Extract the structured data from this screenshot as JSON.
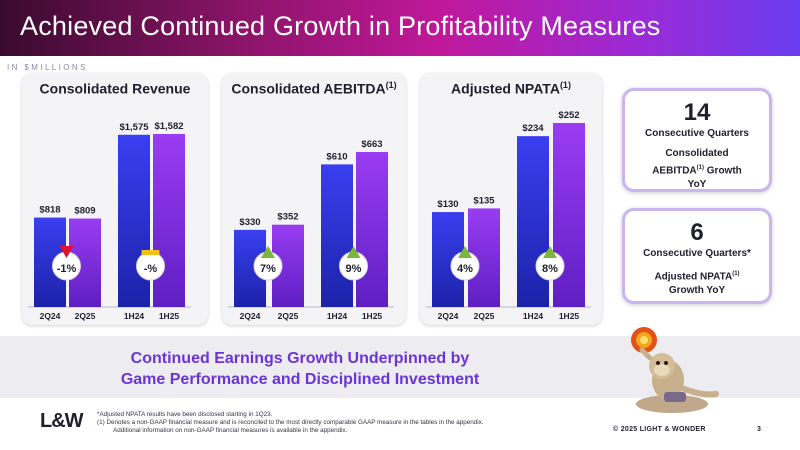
{
  "header": {
    "title": "Achieved Continued Growth in Profitability Measures"
  },
  "units_label": "IN $MILLIONS",
  "chart_data": [
    {
      "type": "bar",
      "title": "Consolidated Revenue",
      "title_sup": "",
      "groups": [
        {
          "bars": [
            {
              "label": "2Q24",
              "value": 818,
              "value_label": "$818"
            },
            {
              "label": "2Q25",
              "value": 809,
              "value_label": "$809"
            }
          ],
          "change": "-1%",
          "indicator": "down"
        },
        {
          "bars": [
            {
              "label": "1H24",
              "value": 1575,
              "value_label": "$1,575"
            },
            {
              "label": "1H25",
              "value": 1582,
              "value_label": "$1,582"
            }
          ],
          "change": "-%",
          "indicator": "flat"
        }
      ]
    },
    {
      "type": "bar",
      "title": "Consolidated AEBITDA",
      "title_sup": "(1)",
      "groups": [
        {
          "bars": [
            {
              "label": "2Q24",
              "value": 330,
              "value_label": "$330"
            },
            {
              "label": "2Q25",
              "value": 352,
              "value_label": "$352"
            }
          ],
          "change": "7%",
          "indicator": "up"
        },
        {
          "bars": [
            {
              "label": "1H24",
              "value": 610,
              "value_label": "$610"
            },
            {
              "label": "1H25",
              "value": 663,
              "value_label": "$663"
            }
          ],
          "change": "9%",
          "indicator": "up"
        }
      ]
    },
    {
      "type": "bar",
      "title": "Adjusted NPATA",
      "title_sup": "(1)",
      "groups": [
        {
          "bars": [
            {
              "label": "2Q24",
              "value": 130,
              "value_label": "$130"
            },
            {
              "label": "2Q25",
              "value": 135,
              "value_label": "$135"
            }
          ],
          "change": "4%",
          "indicator": "up"
        },
        {
          "bars": [
            {
              "label": "1H24",
              "value": 234,
              "value_label": "$234"
            },
            {
              "label": "1H25",
              "value": 252,
              "value_label": "$252"
            }
          ],
          "change": "8%",
          "indicator": "up"
        }
      ]
    }
  ],
  "side_cards": [
    {
      "number": "14",
      "lines": [
        "Consecutive Quarters",
        "",
        "Consolidated",
        "AEBITDA(1) Growth",
        "YoY"
      ]
    },
    {
      "number": "6",
      "lines": [
        "Consecutive Quarters*",
        "",
        "Adjusted NPATA(1)",
        "Growth YoY"
      ]
    }
  ],
  "banner": {
    "line1": "Continued Earnings Growth Underpinned by",
    "line2": "Game Performance and Disciplined Investment"
  },
  "footer": {
    "logo": "L&W",
    "footnote1": "*Adjusted NPATA results have been disclosed starting in 1Q23.",
    "footnote2": "(1)     Denotes a non-GAAP financial measure and is reconciled to the most directly comparable GAAP measure in the tables in the appendix.",
    "footnote3": "Additional information on non-GAAP financial measures is available in the appendix.",
    "copyright": "© 2025 LIGHT & WONDER",
    "page": "3"
  },
  "colors": {
    "bar_prior": "#2a2fcf",
    "bar_current": "#7c2cd9",
    "up": "#7ab83a",
    "down": "#e0102f",
    "flat": "#f2c21a",
    "banner_text": "#6a35d8"
  }
}
